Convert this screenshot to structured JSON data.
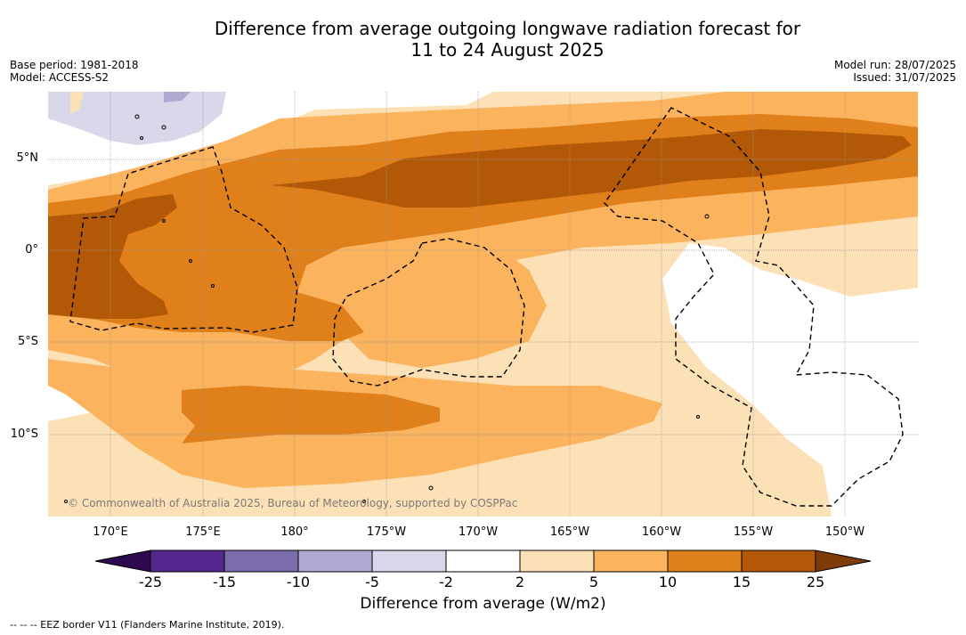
{
  "header": {
    "title_line1": "Difference from average outgoing longwave radiation forecast for",
    "title_line2": "11 to 24 August 2025",
    "base_period": "Base period: 1981-2018",
    "model": "Model: ACCESS-S2",
    "model_run": "Model run: 28/07/2025",
    "issued": "Issued: 31/07/2025"
  },
  "map": {
    "lat_labels": [
      "5°N",
      "0°",
      "5°S",
      "10°S"
    ],
    "lon_labels": [
      "170°E",
      "175°E",
      "180°",
      "175°W",
      "170°W",
      "165°W",
      "160°W",
      "155°W",
      "150°W"
    ],
    "copyright": "© Commonwealth of Australia 2025, Bureau of Meteorology, supported by COSPPac"
  },
  "colorbar": {
    "ticks": [
      "-25",
      "-15",
      "-10",
      "-5",
      "-2",
      "2",
      "5",
      "10",
      "15",
      "25"
    ],
    "colors": [
      "#2d0a4e",
      "#54278f",
      "#7b6cac",
      "#aeaad2",
      "#d8d8ea",
      "#ffffff",
      "#fde1b6",
      "#fbb35e",
      "#e0801a",
      "#b35806",
      "#7f3b08"
    ],
    "title": "Difference from average (W/m2)"
  },
  "footnote": "--  --  -- EEZ border V11 (Flanders Marine Institute, 2019)."
}
